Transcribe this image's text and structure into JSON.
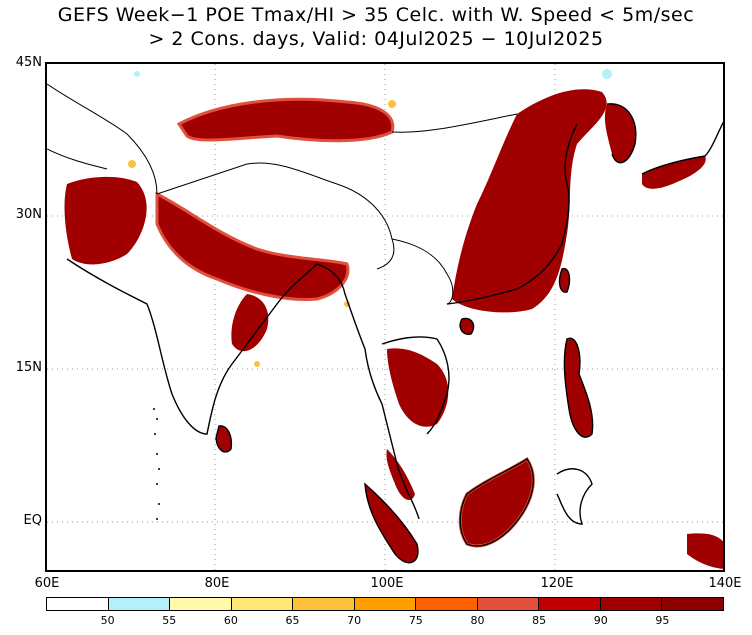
{
  "title": {
    "line1": "GEFS Week−1 POE Tmax/HI > 35 Celc. with W. Speed < 5m/sec",
    "line2": "> 2 Cons. days, Valid: 04Jul2025 − 10Jul2025"
  },
  "map": {
    "lon_range": [
      60,
      140
    ],
    "lat_range": [
      -6,
      45
    ],
    "lat_ticks": [
      "45N",
      "30N",
      "15N",
      "EQ"
    ],
    "lon_ticks": [
      "60E",
      "80E",
      "100E",
      "120E",
      "140E"
    ],
    "gridlines": "dotted"
  },
  "colorbar": {
    "levels": [
      "50",
      "55",
      "60",
      "65",
      "70",
      "75",
      "80",
      "85",
      "90",
      "95"
    ],
    "colors": [
      "#ffffff",
      "#b4f0fa",
      "#fffaaa",
      "#ffe878",
      "#ffc03c",
      "#ffa000",
      "#ff6000",
      "#e1503c",
      "#c00000",
      "#a00000",
      "#8b0000"
    ]
  }
}
